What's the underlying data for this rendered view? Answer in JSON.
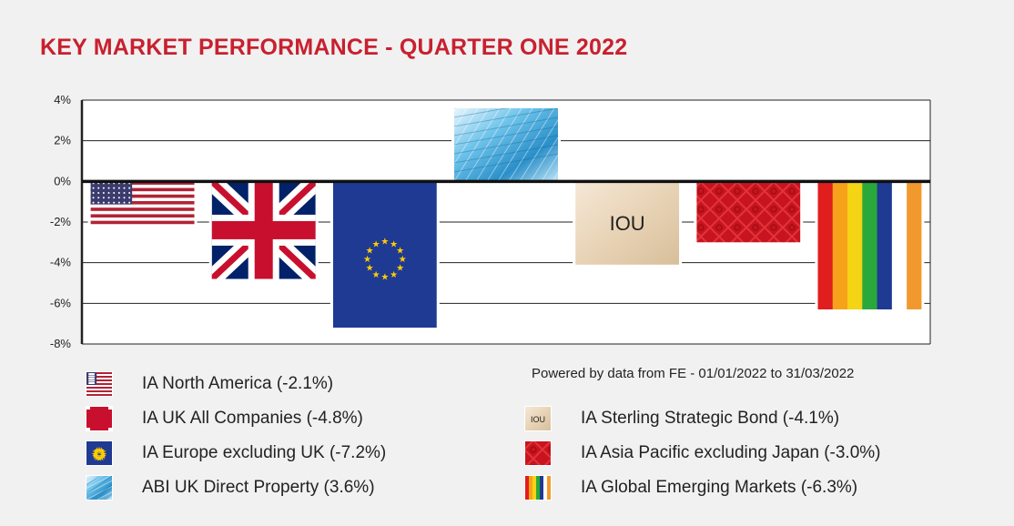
{
  "title": "KEY MARKET PERFORMANCE - QUARTER ONE 2022",
  "source": "Powered by data from FE - 01/01/2022 to 31/03/2022",
  "chart_data": {
    "type": "bar",
    "title": "KEY MARKET PERFORMANCE - QUARTER ONE 2022",
    "xlabel": "",
    "ylabel": "",
    "ylim": [
      -8,
      4
    ],
    "yticks": [
      "4%",
      "2%",
      "0%",
      "-2%",
      "-4%",
      "-6%",
      "-8%"
    ],
    "grid": true,
    "categories": [
      "IA North America",
      "IA UK All Companies",
      "IA Europe excluding UK",
      "ABI UK Direct Property",
      "IA Sterling Strategic Bond",
      "IA Asia Pacific excluding Japan",
      "IA Global Emerging Markets"
    ],
    "values": [
      -2.1,
      -4.8,
      -7.2,
      3.6,
      -4.1,
      -3.0,
      -6.3
    ],
    "bar_fills": [
      "us-flag",
      "uk-flag",
      "eu-flag",
      "glass-building",
      "iou-note",
      "red-pattern",
      "rainbow-stripes"
    ],
    "iou_text": "IOU"
  },
  "legend": {
    "left": [
      {
        "label": "IA North America (-2.1%)",
        "icon": "us-flag-icon"
      },
      {
        "label": "IA UK All Companies (-4.8%)",
        "icon": "uk-flag-icon"
      },
      {
        "label": "IA Europe excluding UK (-7.2%)",
        "icon": "eu-flag-icon"
      },
      {
        "label": "ABI UK Direct Property (3.6%)",
        "icon": "glass-building-icon"
      }
    ],
    "right": [
      {
        "label": "IA Sterling Strategic Bond (-4.1%)",
        "icon": "iou-note-icon"
      },
      {
        "label": "IA Asia Pacific excluding Japan (-3.0%)",
        "icon": "red-pattern-icon"
      },
      {
        "label": "IA Global Emerging Markets (-6.3%)",
        "icon": "rainbow-stripes-icon"
      }
    ]
  }
}
